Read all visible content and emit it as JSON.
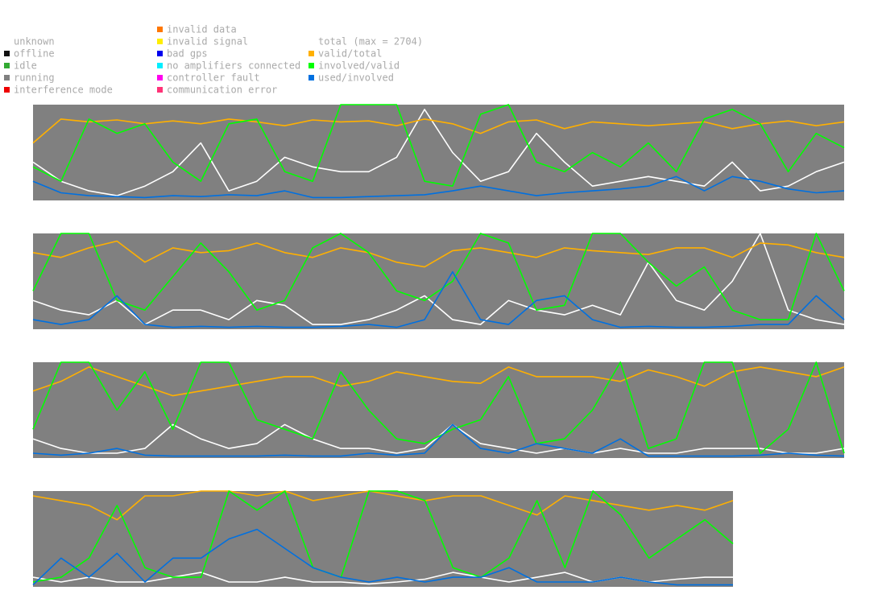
{
  "legend": [
    {
      "label": "unknown",
      "color": null
    },
    {
      "label": "offline",
      "color": "#111111"
    },
    {
      "label": "idle",
      "color": "#33aa33"
    },
    {
      "label": "running",
      "color": "#808080"
    },
    {
      "label": "interference mode",
      "color": "#ee0000"
    },
    {
      "label": "invalid data",
      "color": "#ff7700"
    },
    {
      "label": "invalid signal",
      "color": "#ffee00"
    },
    {
      "label": "bad gps",
      "color": "#0000ee"
    },
    {
      "label": "no amplifiers connected",
      "color": "#00eeff"
    },
    {
      "label": "controller fault",
      "color": "#ff00ee"
    },
    {
      "label": "communication error",
      "color": "#ff3377"
    },
    {
      "label": "total (max = 2704)",
      "color": null
    },
    {
      "label": "valid/total",
      "color": "#ffb000"
    },
    {
      "label": "involved/valid",
      "color": "#00ff00"
    },
    {
      "label": "used/involved",
      "color": "#0070e0"
    }
  ],
  "chart_data": [
    {
      "type": "line",
      "ylim": [
        0,
        1
      ],
      "series": [
        {
          "color": "#ffffff",
          "values": [
            0.4,
            0.2,
            0.1,
            0.05,
            0.15,
            0.3,
            0.6,
            0.1,
            0.2,
            0.45,
            0.35,
            0.3,
            0.3,
            0.45,
            0.95,
            0.5,
            0.2,
            0.3,
            0.7,
            0.4,
            0.15,
            0.2,
            0.25,
            0.2,
            0.15,
            0.4,
            0.1,
            0.15,
            0.3,
            0.4
          ]
        },
        {
          "color": "#ffb000",
          "values": [
            0.6,
            0.85,
            0.82,
            0.84,
            0.8,
            0.83,
            0.8,
            0.85,
            0.82,
            0.78,
            0.84,
            0.82,
            0.83,
            0.78,
            0.85,
            0.8,
            0.7,
            0.82,
            0.84,
            0.75,
            0.82,
            0.8,
            0.78,
            0.8,
            0.82,
            0.75,
            0.8,
            0.83,
            0.78,
            0.82
          ]
        },
        {
          "color": "#00ff00",
          "values": [
            0.35,
            0.2,
            0.85,
            0.7,
            0.8,
            0.4,
            0.2,
            0.8,
            0.85,
            0.3,
            0.2,
            1,
            1,
            1,
            0.2,
            0.15,
            0.9,
            1,
            0.4,
            0.3,
            0.5,
            0.35,
            0.6,
            0.3,
            0.85,
            0.95,
            0.8,
            0.3,
            0.7,
            0.55
          ]
        },
        {
          "color": "#0070e0",
          "values": [
            0.2,
            0.08,
            0.05,
            0.04,
            0.03,
            0.05,
            0.04,
            0.06,
            0.05,
            0.1,
            0.03,
            0.03,
            0.04,
            0.05,
            0.06,
            0.1,
            0.15,
            0.1,
            0.05,
            0.08,
            0.1,
            0.12,
            0.15,
            0.25,
            0.1,
            0.25,
            0.2,
            0.12,
            0.08,
            0.1
          ]
        }
      ]
    },
    {
      "type": "line",
      "ylim": [
        0,
        1
      ],
      "series": [
        {
          "color": "#ffffff",
          "values": [
            0.3,
            0.2,
            0.15,
            0.3,
            0.05,
            0.2,
            0.2,
            0.1,
            0.3,
            0.25,
            0.05,
            0.05,
            0.1,
            0.2,
            0.35,
            0.1,
            0.05,
            0.3,
            0.2,
            0.15,
            0.25,
            0.15,
            0.7,
            0.3,
            0.2,
            0.5,
            1,
            0.2,
            0.1,
            0.05
          ]
        },
        {
          "color": "#ffb000",
          "values": [
            0.8,
            0.75,
            0.85,
            0.92,
            0.7,
            0.85,
            0.8,
            0.82,
            0.9,
            0.8,
            0.75,
            0.85,
            0.8,
            0.7,
            0.65,
            0.82,
            0.85,
            0.8,
            0.75,
            0.85,
            0.82,
            0.8,
            0.78,
            0.85,
            0.85,
            0.75,
            0.9,
            0.88,
            0.8,
            0.75
          ]
        },
        {
          "color": "#00ff00",
          "values": [
            0.4,
            1,
            1,
            0.3,
            0.2,
            0.55,
            0.9,
            0.6,
            0.2,
            0.3,
            0.85,
            1,
            0.8,
            0.4,
            0.3,
            0.5,
            1,
            0.9,
            0.2,
            0.25,
            1,
            1,
            0.7,
            0.45,
            0.65,
            0.2,
            0.1,
            0.1,
            1,
            0.4
          ]
        },
        {
          "color": "#0070e0",
          "values": [
            0.1,
            0.05,
            0.1,
            0.35,
            0.05,
            0.02,
            0.03,
            0.02,
            0.03,
            0.02,
            0.02,
            0.03,
            0.05,
            0.02,
            0.1,
            0.6,
            0.1,
            0.05,
            0.3,
            0.35,
            0.1,
            0.02,
            0.03,
            0.02,
            0.02,
            0.03,
            0.05,
            0.05,
            0.35,
            0.1
          ]
        }
      ]
    },
    {
      "type": "line",
      "ylim": [
        0,
        1
      ],
      "series": [
        {
          "color": "#ffffff",
          "values": [
            0.2,
            0.1,
            0.05,
            0.05,
            0.1,
            0.35,
            0.2,
            0.1,
            0.15,
            0.35,
            0.2,
            0.1,
            0.1,
            0.05,
            0.1,
            0.35,
            0.15,
            0.1,
            0.05,
            0.1,
            0.05,
            0.1,
            0.05,
            0.05,
            0.1,
            0.1,
            0.1,
            0.05,
            0.05,
            0.1
          ]
        },
        {
          "color": "#ffb000",
          "values": [
            0.7,
            0.8,
            0.95,
            0.85,
            0.75,
            0.65,
            0.7,
            0.75,
            0.8,
            0.85,
            0.85,
            0.75,
            0.8,
            0.9,
            0.85,
            0.8,
            0.78,
            0.95,
            0.85,
            0.85,
            0.85,
            0.8,
            0.92,
            0.85,
            0.75,
            0.9,
            0.95,
            0.9,
            0.85,
            0.95
          ]
        },
        {
          "color": "#00ff00",
          "values": [
            0.3,
            1,
            1,
            0.5,
            0.9,
            0.3,
            1,
            1,
            0.4,
            0.3,
            0.2,
            0.9,
            0.5,
            0.2,
            0.15,
            0.3,
            0.4,
            0.85,
            0.15,
            0.2,
            0.5,
            1,
            0.1,
            0.2,
            1,
            1,
            0.05,
            0.3,
            1,
            0.05
          ]
        },
        {
          "color": "#0070e0",
          "values": [
            0.05,
            0.03,
            0.05,
            0.1,
            0.03,
            0.02,
            0.02,
            0.02,
            0.02,
            0.03,
            0.02,
            0.02,
            0.05,
            0.03,
            0.05,
            0.35,
            0.1,
            0.05,
            0.15,
            0.1,
            0.05,
            0.2,
            0.02,
            0.02,
            0.02,
            0.02,
            0.03,
            0.05,
            0.03,
            0.02
          ]
        }
      ]
    },
    {
      "type": "line",
      "ylim": [
        0,
        1
      ],
      "series": [
        {
          "color": "#ffffff",
          "values": [
            0.1,
            0.05,
            0.1,
            0.05,
            0.05,
            0.1,
            0.15,
            0.05,
            0.05,
            0.1,
            0.05,
            0.05,
            0.03,
            0.05,
            0.08,
            0.15,
            0.1,
            0.05,
            0.1,
            0.15,
            0.05,
            0.1,
            0.05,
            0.08,
            0.1,
            0.1
          ]
        },
        {
          "color": "#ffb000",
          "values": [
            0.95,
            0.9,
            0.85,
            0.7,
            0.95,
            0.95,
            1,
            1,
            0.95,
            1,
            0.9,
            0.95,
            1,
            0.95,
            0.9,
            0.95,
            0.95,
            0.85,
            0.75,
            0.95,
            0.9,
            0.85,
            0.8,
            0.85,
            0.8,
            0.9
          ]
        },
        {
          "color": "#00ff00",
          "values": [
            0.05,
            0.1,
            0.3,
            0.85,
            0.2,
            0.1,
            0.1,
            1,
            0.8,
            1,
            0.2,
            0.1,
            1,
            1,
            0.9,
            0.2,
            0.1,
            0.3,
            0.9,
            0.2,
            1,
            0.75,
            0.3,
            0.5,
            0.7,
            0.45
          ]
        },
        {
          "color": "#0070e0",
          "values": [
            0.02,
            0.3,
            0.1,
            0.35,
            0.05,
            0.3,
            0.3,
            0.5,
            0.6,
            0.4,
            0.2,
            0.1,
            0.05,
            0.1,
            0.05,
            0.1,
            0.1,
            0.2,
            0.05,
            0.05,
            0.05,
            0.1,
            0.05,
            0.02,
            0.02,
            0.02
          ]
        }
      ]
    }
  ]
}
